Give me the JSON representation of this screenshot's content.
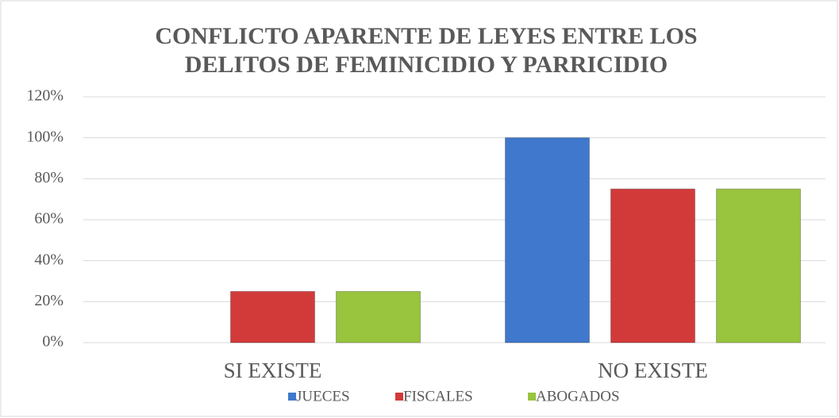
{
  "chart_data": {
    "type": "bar",
    "title": [
      "CONFLICTO APARENTE DE LEYES ENTRE LOS",
      "DELITOS DE FEMINICIDIO Y PARRICIDIO"
    ],
    "categories": [
      "SI EXISTE",
      "NO EXISTE"
    ],
    "series": [
      {
        "name": "JUECES",
        "color": "#3f78cc",
        "values": [
          0,
          100
        ]
      },
      {
        "name": "FISCALES",
        "color": "#d23a3a",
        "values": [
          25,
          75
        ]
      },
      {
        "name": "ABOGADOS",
        "color": "#98c43e",
        "values": [
          25,
          75
        ]
      }
    ],
    "ylim": [
      0,
      120
    ],
    "yticks": [
      {
        "value": 0,
        "label": "0%"
      },
      {
        "value": 20,
        "label": "20%"
      },
      {
        "value": 40,
        "label": "40%"
      },
      {
        "value": 60,
        "label": "60%"
      },
      {
        "value": 80,
        "label": "80%"
      },
      {
        "value": 100,
        "label": "100%"
      },
      {
        "value": 120,
        "label": "120%"
      }
    ],
    "grid": true,
    "legend": "bottom"
  }
}
